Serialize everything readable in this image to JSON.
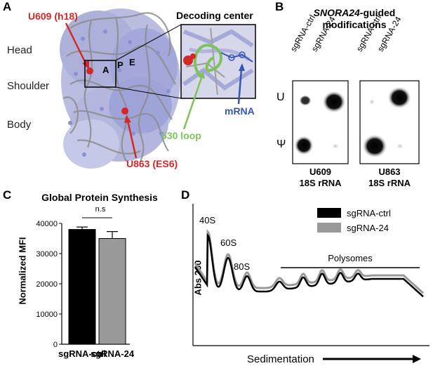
{
  "panels": {
    "a": "A",
    "b": "B",
    "c": "C",
    "d": "D"
  },
  "panel_a": {
    "regions": [
      "Head",
      "Shoulder",
      "Body"
    ],
    "sites": [
      "A",
      "P",
      "E"
    ],
    "inset_title": "Decoding center",
    "u609": "U609 (h18)",
    "u863": "U863 (ES6)",
    "loop_label": "530 loop",
    "mrna_label": "mRNA",
    "colors": {
      "rrna_protein": "#9fa3d8",
      "rrna": "#8c8c8c",
      "highlight": "#d62728",
      "loop": "#7cc35a",
      "mrna": "#3556b5"
    }
  },
  "panel_b": {
    "title_italic": "SNORA24",
    "title_rest": "-guided",
    "title_line2": "modifications",
    "lanes": [
      "sgRNA-ctrl",
      "sgRNA-24"
    ],
    "row_u": "U",
    "row_psi": "Ψ",
    "caption1_a": "U609",
    "caption1_b": "18S rRNA",
    "caption2_a": "U863",
    "caption2_b": "18S rRNA"
  },
  "chart_data": [
    {
      "type": "bar",
      "title": "Global Protein Synthesis",
      "categories": [
        "sgRNA-ctrl",
        "sgRNA-24"
      ],
      "values": [
        38000,
        35000
      ],
      "errors": [
        800,
        2300
      ],
      "ylabel": "Normalized MFI",
      "xlabel": "",
      "ylim": [
        0,
        40000
      ],
      "yticks": [
        "0",
        "10000",
        "20000",
        "30000",
        "40000"
      ],
      "significance": "n.s",
      "colors": [
        "#000000",
        "#999999"
      ]
    },
    {
      "type": "line",
      "title": "",
      "ylabel": "Abs 260",
      "xlabel": "Sedimentation",
      "peak_labels": [
        "40S",
        "60S",
        "80S"
      ],
      "bracket_label": "Polysomes",
      "series": [
        {
          "name": "sgRNA-ctrl",
          "color": "#000000"
        },
        {
          "name": "sgRNA-24",
          "color": "#999999"
        }
      ]
    }
  ]
}
